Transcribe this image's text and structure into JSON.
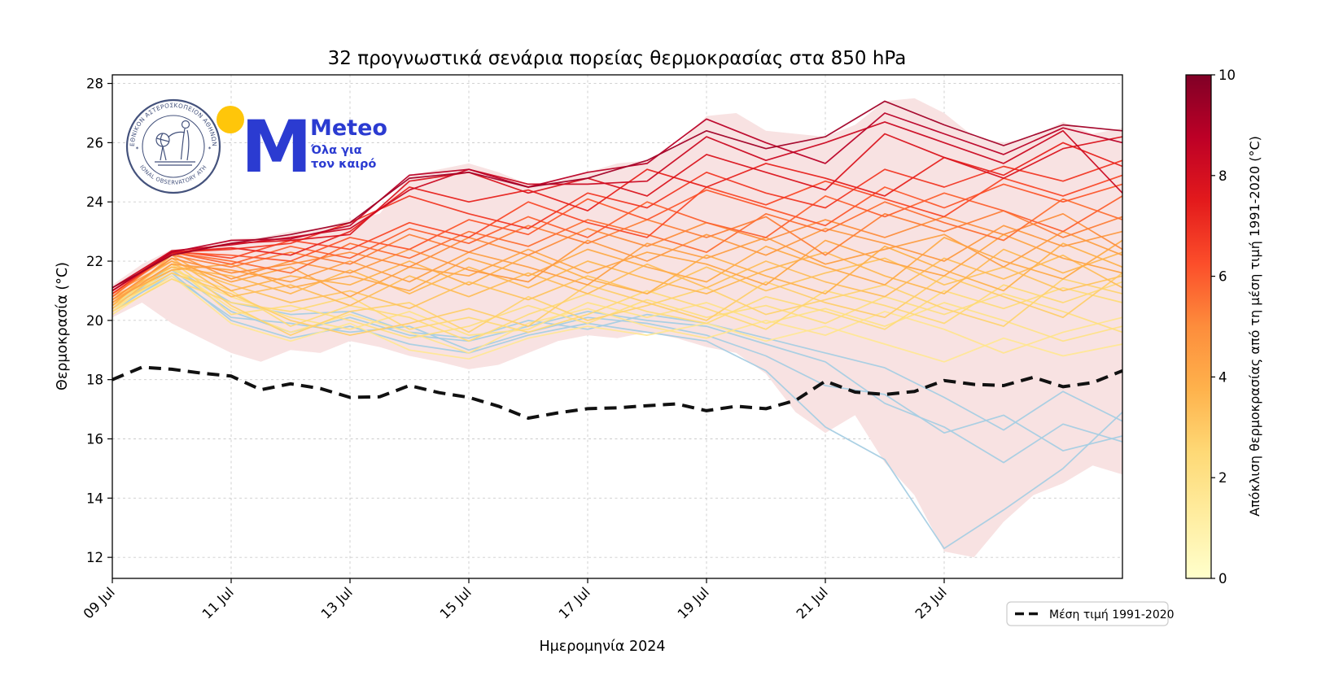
{
  "logos": {
    "observatory_ring_top": "ΕΘΝΙΚΟΝ ΑΣΤΕΡΟΣΚΟΠΕΙΟΝ ΑΘΗΝΩΝ",
    "observatory_ring_bottom": "NATIONAL OBSERVATORY ATHENS",
    "meteo_m": "M",
    "meteo_wordmark": "Meteo",
    "meteo_tagline_line1": "Όλα για",
    "meteo_tagline_line2": "τον καιρό"
  },
  "chart_data": {
    "type": "line",
    "title": "32 προγνωστικά σενάρια πορείας θερμοκρασίας στα 850 hPa",
    "xlabel": "Ημερομηνία 2024",
    "ylabel": "Θερμοκρασία (°C)",
    "legend_label": "Μέση τιμή 1991-2020",
    "x_unit": "days since 09 Jul 2024",
    "xlim": [
      0,
      17
    ],
    "ylim": [
      11.29,
      28.29
    ],
    "grid": true,
    "x_ticks": [
      {
        "pos": 0,
        "label": "09 Jul"
      },
      {
        "pos": 2,
        "label": "11 Jul"
      },
      {
        "pos": 4,
        "label": "13 Jul"
      },
      {
        "pos": 6,
        "label": "15 Jul"
      },
      {
        "pos": 8,
        "label": "17 Jul"
      },
      {
        "pos": 10,
        "label": "19 Jul"
      },
      {
        "pos": 12,
        "label": "21 Jul"
      },
      {
        "pos": 14,
        "label": "23 Jul"
      }
    ],
    "y_ticks": [
      12,
      14,
      16,
      18,
      20,
      22,
      24,
      26,
      28
    ],
    "colorbar": {
      "label": "Απόκλιση θερμοκρασίας από τη μέση τιμή 1991-2020 (°C)",
      "range": [
        0,
        10
      ],
      "ticks": [
        0,
        2,
        4,
        6,
        8,
        10
      ],
      "colormap": [
        "#ffffcc",
        "#ffeda0",
        "#fed976",
        "#feb24c",
        "#fd8d3c",
        "#fc4e2a",
        "#e31a1c",
        "#bd0026",
        "#800026"
      ]
    },
    "below_mean_color": "#a5cde3",
    "envelope_fill": "#f8e2e2",
    "envelope": {
      "x": [
        0,
        0.5,
        1,
        1.5,
        2,
        2.5,
        3,
        3.5,
        4,
        4.5,
        5,
        5.5,
        6,
        6.5,
        7,
        7.5,
        8,
        8.5,
        9,
        9.5,
        10,
        10.5,
        11,
        11.5,
        12,
        12.5,
        13,
        13.5,
        14,
        14.5,
        15,
        15.5,
        16,
        16.5,
        17
      ],
      "max": [
        21.2,
        21.9,
        22.4,
        22.4,
        22.75,
        22.8,
        23.0,
        23.1,
        23.4,
        23.6,
        24.9,
        25.1,
        25.3,
        25.0,
        24.6,
        24.7,
        25.0,
        25.3,
        25.4,
        25.9,
        26.9,
        27.0,
        26.4,
        26.3,
        26.2,
        26.6,
        27.4,
        27.5,
        27.0,
        26.2,
        26.0,
        26.2,
        26.7,
        26.3,
        26.5
      ],
      "min": [
        20.1,
        20.6,
        19.9,
        19.4,
        18.9,
        18.6,
        19.0,
        18.9,
        19.3,
        19.1,
        18.8,
        18.6,
        18.35,
        18.5,
        18.9,
        19.3,
        19.5,
        19.4,
        19.6,
        19.4,
        19.1,
        18.9,
        18.2,
        16.9,
        16.2,
        16.8,
        15.2,
        14.1,
        12.2,
        12.0,
        13.2,
        14.1,
        14.5,
        15.1,
        14.8
      ]
    },
    "climatology": {
      "style": "dashed-black",
      "x": [
        0,
        0.5,
        1,
        1.5,
        2,
        2.5,
        3,
        3.5,
        4,
        4.5,
        5,
        5.5,
        6,
        6.5,
        7,
        7.5,
        8,
        8.5,
        9,
        9.5,
        10,
        10.5,
        11,
        11.5,
        12,
        12.5,
        13,
        13.5,
        14,
        14.5,
        15,
        15.5,
        16,
        16.5,
        17
      ],
      "values": [
        18.0,
        18.42,
        18.35,
        18.22,
        18.12,
        17.66,
        17.86,
        17.7,
        17.4,
        17.42,
        17.8,
        17.56,
        17.4,
        17.1,
        16.7,
        16.88,
        17.02,
        17.05,
        17.12,
        17.18,
        16.95,
        17.1,
        17.02,
        17.3,
        17.95,
        17.58,
        17.5,
        17.6,
        17.97,
        17.84,
        17.8,
        18.08,
        17.76,
        17.9,
        18.3
      ]
    },
    "members_x": [
      0,
      1,
      2,
      3,
      4,
      5,
      6,
      7,
      8,
      9,
      10,
      11,
      12,
      13,
      14,
      15,
      16,
      17
    ],
    "members": [
      {
        "deviation": -0.8,
        "color": "#a5cde3",
        "values": [
          20.3,
          21.6,
          20.0,
          19.4,
          19.8,
          19.2,
          18.9,
          19.5,
          19.9,
          19.6,
          19.3,
          18.3,
          16.4,
          15.3,
          12.3,
          13.6,
          15.0,
          16.9
        ]
      },
      {
        "deviation": -0.5,
        "color": "#a5cde3",
        "values": [
          20.5,
          21.7,
          20.3,
          19.6,
          20.1,
          19.5,
          19.3,
          19.8,
          20.3,
          20.0,
          19.8,
          19.2,
          18.6,
          17.2,
          16.4,
          15.2,
          16.5,
          15.9
        ]
      },
      {
        "deviation": -0.4,
        "color": "#a5cde3",
        "values": [
          20.4,
          21.5,
          20.1,
          19.9,
          19.6,
          19.8,
          19.0,
          19.6,
          20.1,
          19.9,
          19.5,
          18.8,
          17.8,
          17.5,
          16.2,
          16.8,
          15.6,
          16.1
        ]
      },
      {
        "deviation": -0.2,
        "color": "#a5cde3",
        "values": [
          20.6,
          21.8,
          20.6,
          20.2,
          20.3,
          19.6,
          19.4,
          20.0,
          19.7,
          20.2,
          19.9,
          19.4,
          18.9,
          18.4,
          17.4,
          16.3,
          17.6,
          16.6
        ]
      },
      {
        "deviation": 1.6,
        "values": [
          20.2,
          21.5,
          19.9,
          19.3,
          19.9,
          19.0,
          18.7,
          19.4,
          19.8,
          19.5,
          19.9,
          19.3,
          19.8,
          19.2,
          18.6,
          19.4,
          18.8,
          19.2
        ]
      },
      {
        "deviation": 1.8,
        "values": [
          20.3,
          21.8,
          20.4,
          19.6,
          20.2,
          19.6,
          18.9,
          19.9,
          20.4,
          19.8,
          19.4,
          20.0,
          19.5,
          20.3,
          19.7,
          18.9,
          19.6,
          20.1
        ]
      },
      {
        "deviation": 2.0,
        "values": [
          20.4,
          21.6,
          20.8,
          20.1,
          19.7,
          20.3,
          19.5,
          19.7,
          20.6,
          20.1,
          20.6,
          19.9,
          20.4,
          19.8,
          20.6,
          20.0,
          19.3,
          19.8
        ]
      },
      {
        "deviation": 2.2,
        "values": [
          20.5,
          21.9,
          20.2,
          20.5,
          20.0,
          19.4,
          19.8,
          20.5,
          19.9,
          20.7,
          20.1,
          20.5,
          19.9,
          20.8,
          20.2,
          20.9,
          20.3,
          19.6
        ]
      },
      {
        "deviation": 2.4,
        "values": [
          20.6,
          21.7,
          21.0,
          19.8,
          20.5,
          20.1,
          19.3,
          20.2,
          20.9,
          20.3,
          19.9,
          20.8,
          20.3,
          19.7,
          21.0,
          20.4,
          21.1,
          20.6
        ]
      },
      {
        "deviation": 2.5,
        "values": [
          20.3,
          21.4,
          20.6,
          20.3,
          20.8,
          19.7,
          20.1,
          19.6,
          20.2,
          21.0,
          20.4,
          19.7,
          21.0,
          20.5,
          19.9,
          21.2,
          20.6,
          21.3
        ]
      },
      {
        "deviation": 2.7,
        "values": [
          20.7,
          22.0,
          20.5,
          19.5,
          20.3,
          20.6,
          19.6,
          20.8,
          20.0,
          20.5,
          21.1,
          20.2,
          20.7,
          21.2,
          20.4,
          19.8,
          21.4,
          20.9
        ]
      },
      {
        "deviation": 2.9,
        "values": [
          20.5,
          21.6,
          20.9,
          20.0,
          19.5,
          19.9,
          20.4,
          19.8,
          21.2,
          20.6,
          20.0,
          21.3,
          20.6,
          20.1,
          21.5,
          20.8,
          20.1,
          21.6
        ]
      },
      {
        "deviation": 3.2,
        "values": [
          20.4,
          21.9,
          21.2,
          20.6,
          21.0,
          20.4,
          21.3,
          20.7,
          21.5,
          20.9,
          21.8,
          21.0,
          21.6,
          22.1,
          21.2,
          21.8,
          21.0,
          21.5
        ]
      },
      {
        "deviation": 3.4,
        "values": [
          20.6,
          22.1,
          20.8,
          21.2,
          20.5,
          21.5,
          20.8,
          21.6,
          20.9,
          21.9,
          21.1,
          22.0,
          21.3,
          20.8,
          22.1,
          21.4,
          22.2,
          21.1
        ]
      },
      {
        "deviation": 3.6,
        "values": [
          20.8,
          21.8,
          21.5,
          20.9,
          21.7,
          20.9,
          21.8,
          21.1,
          22.0,
          21.4,
          20.9,
          21.7,
          22.3,
          21.5,
          20.9,
          22.4,
          21.6,
          22.3
        ]
      },
      {
        "deviation": 3.8,
        "values": [
          20.5,
          22.2,
          21.0,
          21.5,
          21.2,
          22.0,
          21.2,
          22.2,
          21.4,
          20.9,
          22.2,
          21.5,
          20.9,
          22.5,
          21.7,
          21.0,
          22.6,
          21.8
        ]
      },
      {
        "deviation": 4.0,
        "values": [
          20.7,
          21.7,
          21.9,
          21.1,
          21.5,
          21.0,
          22.1,
          21.5,
          22.4,
          21.8,
          21.3,
          22.5,
          21.8,
          21.2,
          22.8,
          22.0,
          21.4,
          22.7
        ]
      },
      {
        "deviation": 4.2,
        "values": [
          20.9,
          22.0,
          21.3,
          21.8,
          20.8,
          21.8,
          21.5,
          22.4,
          21.6,
          22.3,
          21.9,
          21.2,
          22.7,
          22.0,
          21.5,
          22.9,
          22.1,
          21.6
        ]
      },
      {
        "deviation": 4.4,
        "values": [
          20.6,
          21.9,
          21.7,
          21.3,
          22.0,
          21.3,
          22.3,
          21.8,
          21.2,
          22.6,
          22.1,
          22.8,
          21.9,
          22.4,
          22.9,
          21.8,
          23.0,
          22.2
        ]
      },
      {
        "deviation": 4.6,
        "values": [
          20.8,
          22.3,
          21.4,
          22.0,
          21.6,
          22.4,
          21.7,
          21.3,
          22.7,
          22.0,
          22.9,
          22.2,
          23.1,
          22.6,
          22.0,
          23.2,
          22.5,
          23.0
        ]
      },
      {
        "deviation": 5.0,
        "values": [
          20.7,
          22.1,
          21.6,
          21.9,
          22.3,
          21.8,
          22.8,
          22.2,
          23.1,
          22.5,
          23.3,
          22.7,
          23.4,
          22.8,
          23.5,
          22.9,
          23.6,
          22.4
        ]
      },
      {
        "deviation": 5.3,
        "values": [
          20.9,
          22.2,
          21.8,
          22.3,
          21.9,
          22.9,
          22.3,
          23.2,
          22.6,
          23.4,
          22.8,
          23.5,
          22.2,
          23.6,
          23.0,
          23.7,
          22.8,
          23.5
        ]
      },
      {
        "deviation": 5.6,
        "values": [
          20.8,
          22.3,
          22.0,
          21.6,
          22.6,
          22.1,
          23.0,
          22.5,
          23.4,
          22.9,
          22.3,
          23.6,
          23.0,
          24.0,
          23.3,
          22.7,
          24.1,
          23.4
        ]
      },
      {
        "deviation": 5.9,
        "values": [
          21.0,
          22.3,
          21.9,
          22.5,
          22.1,
          23.1,
          22.6,
          23.5,
          22.8,
          24.0,
          23.3,
          22.8,
          24.2,
          23.5,
          24.3,
          23.7,
          23.0,
          24.2
        ]
      },
      {
        "deviation": 6.1,
        "values": [
          20.9,
          22.3,
          22.2,
          22.0,
          22.8,
          22.4,
          23.4,
          22.9,
          24.1,
          23.4,
          24.4,
          23.8,
          23.2,
          24.5,
          23.8,
          24.6,
          24.0,
          24.6
        ]
      },
      {
        "deviation": 6.4,
        "values": [
          21.0,
          22.35,
          22.1,
          22.7,
          22.4,
          23.3,
          22.8,
          24.0,
          23.3,
          22.8,
          24.5,
          23.9,
          24.7,
          24.1,
          23.5,
          24.8,
          24.2,
          24.9
        ]
      },
      {
        "deviation": 6.8,
        "values": [
          20.9,
          22.3,
          22.4,
          22.6,
          23.3,
          24.2,
          23.6,
          23.1,
          24.3,
          23.8,
          25.0,
          24.3,
          23.8,
          25.1,
          24.5,
          25.2,
          24.7,
          25.4
        ]
      },
      {
        "deviation": 7.3,
        "values": [
          21.0,
          22.3,
          22.45,
          22.2,
          23.0,
          24.5,
          24.0,
          24.4,
          23.7,
          25.1,
          24.5,
          25.3,
          24.8,
          24.2,
          25.5,
          24.9,
          26.0,
          25.2
        ]
      },
      {
        "deviation": 7.8,
        "values": [
          21.0,
          22.25,
          22.6,
          22.7,
          22.9,
          24.7,
          25.0,
          24.3,
          24.8,
          24.2,
          25.6,
          25.0,
          24.4,
          26.3,
          25.5,
          24.8,
          25.8,
          26.2
        ]
      },
      {
        "deviation": 8.3,
        "values": [
          21.1,
          22.35,
          22.55,
          22.8,
          23.1,
          24.4,
          25.1,
          24.6,
          24.6,
          24.7,
          26.2,
          25.4,
          26.0,
          26.7,
          26.0,
          25.3,
          26.4,
          24.3
        ]
      },
      {
        "deviation": 8.8,
        "values": [
          21.0,
          22.3,
          22.7,
          22.75,
          23.2,
          24.9,
          25.1,
          24.5,
          25.0,
          25.3,
          26.8,
          26.0,
          25.3,
          27.0,
          26.3,
          25.6,
          26.5,
          26.0
        ]
      },
      {
        "deviation": 9.3,
        "values": [
          21.1,
          22.2,
          22.6,
          22.9,
          23.3,
          24.8,
          25.0,
          24.5,
          24.8,
          25.4,
          26.4,
          25.8,
          26.2,
          27.4,
          26.6,
          25.9,
          26.6,
          26.4
        ]
      }
    ]
  }
}
